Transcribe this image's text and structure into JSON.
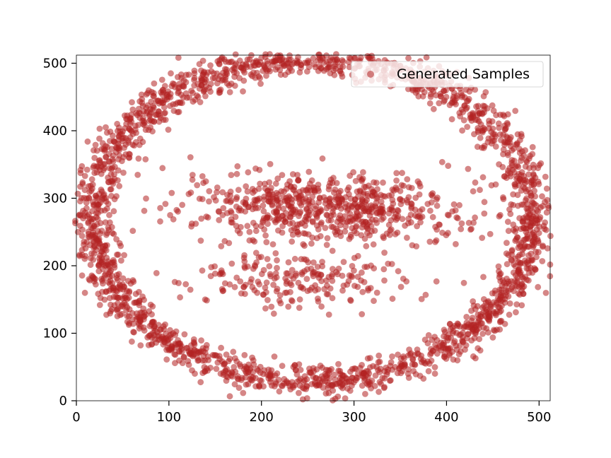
{
  "chart_data": {
    "type": "scatter",
    "title": "",
    "xlabel": "",
    "ylabel": "",
    "xlim": [
      0,
      512
    ],
    "ylim": [
      0,
      512
    ],
    "xticks": [
      0,
      100,
      200,
      300,
      400,
      500
    ],
    "yticks": [
      0,
      100,
      200,
      300,
      400,
      500
    ],
    "grid": false,
    "legend": {
      "placement": "top-right",
      "entries": [
        "Generated Samples"
      ]
    },
    "series": [
      {
        "name": "Generated Samples",
        "color": "#b22222",
        "alpha": 0.55,
        "marker": "circle",
        "approx_point_count": 3000,
        "structure": [
          {
            "kind": "ring",
            "center": [
              256,
              268
            ],
            "radii": [
              237,
              242
            ],
            "noise": 12,
            "points": 2150,
            "note": "outer ellipse band"
          },
          {
            "kind": "blob",
            "center": [
              270,
              285
            ],
            "radii": [
              140,
              45
            ],
            "points": 650,
            "note": "upper inner cluster"
          },
          {
            "kind": "blob",
            "center": [
              245,
              180
            ],
            "radii": [
              110,
              35
            ],
            "points": 200,
            "note": "lower inner cluster"
          }
        ]
      }
    ]
  }
}
